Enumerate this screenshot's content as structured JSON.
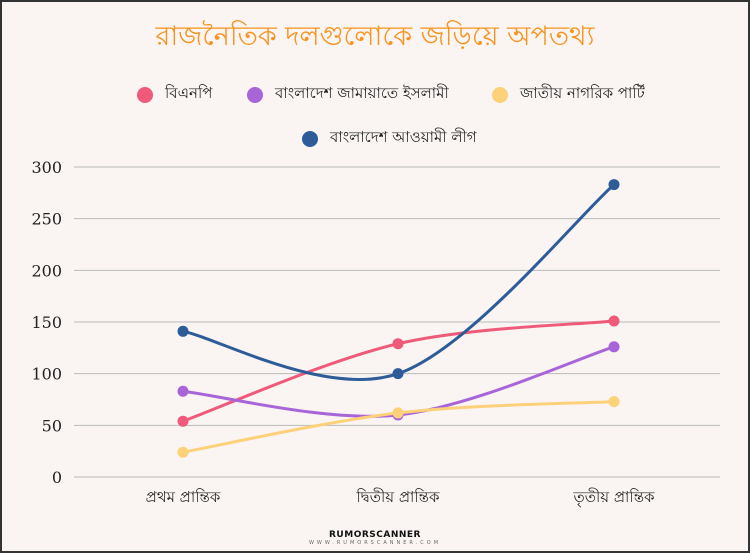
{
  "chart_data": {
    "type": "line",
    "title": "রাজনৈতিক দলগুলোকে জড়িয়ে অপতথ্য",
    "categories": [
      "প্রথম প্রান্তিক",
      "দ্বিতীয় প্রান্তিক",
      "তৃতীয় প্রান্তিক"
    ],
    "ylim": [
      0,
      300
    ],
    "yticks": [
      0,
      50,
      100,
      150,
      200,
      250,
      300
    ],
    "grid": true,
    "legend_position": "top",
    "series": [
      {
        "name": "বিএনপি",
        "color": "#ef5a7a",
        "values": [
          54,
          129,
          151
        ]
      },
      {
        "name": "বাংলাদেশ জামায়াতে ইসলামী",
        "color": "#a865d8",
        "values": [
          83,
          60,
          126
        ]
      },
      {
        "name": "জাতীয় নাগরিক পার্টি",
        "color": "#fdd17a",
        "values": [
          24,
          62,
          73
        ]
      },
      {
        "name": "বাংলাদেশ আওয়ামী লীগ",
        "color": "#2d5c99",
        "values": [
          141,
          100,
          283
        ]
      }
    ]
  },
  "footer": {
    "brand": "RUMORSCANNER",
    "site": "WWW.RUMORSCANNER.COM"
  }
}
